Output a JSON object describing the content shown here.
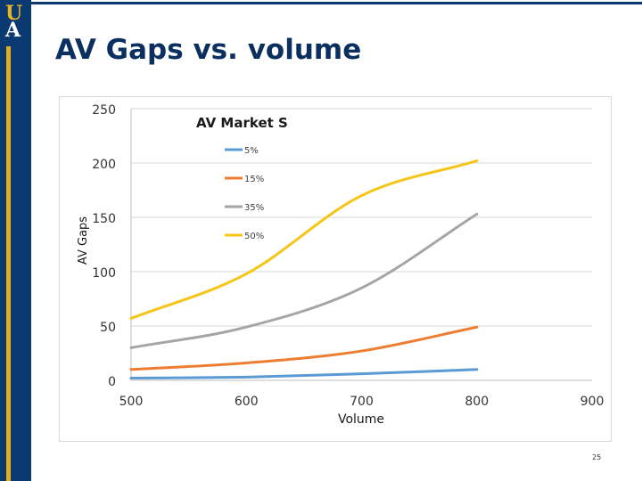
{
  "slide": {
    "title": "AV Gaps vs. volume",
    "page_number": "25",
    "logo_letters": [
      "U",
      "A"
    ],
    "colors": {
      "navy": "#0b3a73",
      "gold": "#e3ad1b"
    }
  },
  "chart_data": {
    "type": "line",
    "title": "AV Market S",
    "xlabel": "Volume",
    "ylabel": "AV Gaps",
    "xlim": [
      500,
      900
    ],
    "ylim": [
      0,
      250
    ],
    "xticks": [
      500,
      600,
      700,
      800,
      900
    ],
    "yticks": [
      0,
      50,
      100,
      150,
      200,
      250
    ],
    "grid": true,
    "legend": "inside-top-center",
    "series": [
      {
        "name": "5%",
        "color": "#5b9bd5",
        "x": [
          500,
          600,
          700,
          800
        ],
        "y": [
          2,
          3,
          6,
          10
        ]
      },
      {
        "name": "15%",
        "color": "#ed7d31",
        "x": [
          500,
          600,
          700,
          800
        ],
        "y": [
          10,
          16,
          27,
          49
        ]
      },
      {
        "name": "35%",
        "color": "#a5a5a5",
        "x": [
          500,
          600,
          700,
          800
        ],
        "y": [
          30,
          49,
          85,
          153
        ]
      },
      {
        "name": "50%",
        "color": "#f5c518",
        "x": [
          500,
          600,
          700,
          800
        ],
        "y": [
          57,
          98,
          170,
          202
        ]
      }
    ]
  }
}
